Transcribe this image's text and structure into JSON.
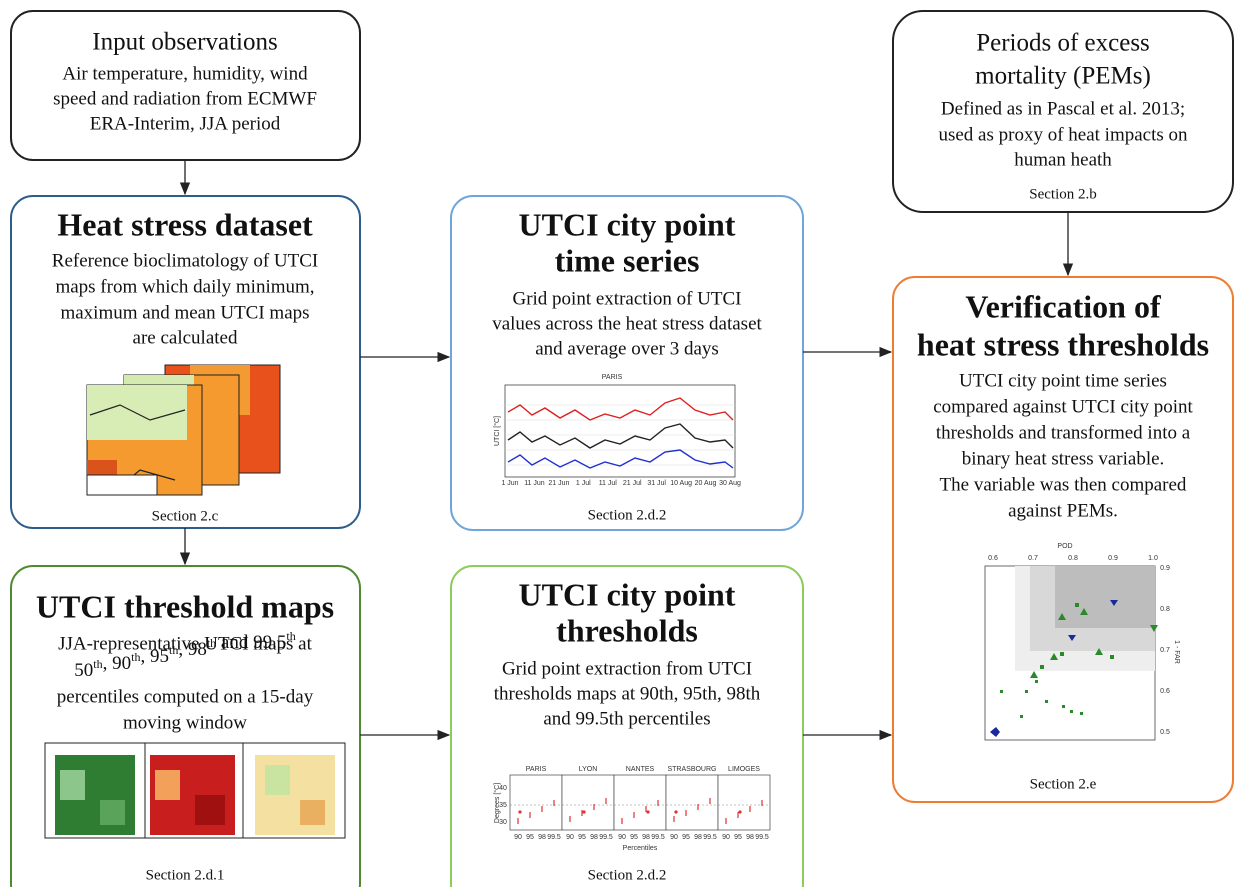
{
  "nodes": [
    {
      "title": [
        "Input observations"
      ],
      "body": [
        "Air temperature, humidity, wind",
        "speed and radiation from ECMWF",
        "ERA-Interim, JJA period"
      ]
    },
    {
      "title": [
        "Heat stress dataset"
      ],
      "body": [
        "Reference bioclimatology of UTCI",
        "maps from which daily minimum,",
        "maximum and mean UTCI maps",
        "are calculated"
      ],
      "section": "Section 2.c"
    },
    {
      "title": [
        "UTCI threshold maps"
      ],
      "body": [
        "JJA-representative UTCI maps at",
        "percentiles computed on a 15-day",
        "moving window"
      ],
      "percentile_line": [
        {
          "text": "50",
          "sup": "th"
        },
        {
          "text": ", 90",
          "sup": "th"
        },
        {
          "text": ", 95",
          "sup": "th"
        },
        {
          "text": ", 98",
          "sup": "th"
        },
        {
          "text": " and 99.5",
          "sup": "th"
        }
      ],
      "section": "Section 2.d.1"
    },
    {
      "title": [
        "UTCI city point",
        "time series"
      ],
      "body": [
        "Grid point extraction of UTCI",
        "values across the heat stress dataset",
        "and average over 3 days"
      ],
      "section": "Section 2.d.2",
      "figure": {
        "title": "PARIS",
        "ylabel": "UTCI [°C]",
        "xticks": [
          "1 Jun",
          "11 Jun",
          "21 Jun",
          "1 Jul",
          "11 Jul",
          "21 Jul",
          "31 Jul",
          "10 Aug",
          "20 Aug",
          "30 Aug"
        ]
      }
    },
    {
      "title": [
        "UTCI city point",
        "thresholds"
      ],
      "body": [
        "Grid point extraction from UTCI",
        "thresholds maps at 90th, 95th, 98th",
        "and 99.5th percentiles"
      ],
      "section": "Section 2.d.2",
      "figure": {
        "panels": [
          "PARIS",
          "LYON",
          "NANTES",
          "STRASBOURG",
          "LIMOGES"
        ],
        "ylabel": "Degrees [°C]",
        "yticks": [
          "40",
          "35",
          "30"
        ],
        "xticks": [
          "90",
          "95",
          "98",
          "99.5"
        ],
        "xlabel": "Percentiles"
      }
    },
    {
      "title": [
        "Periods of excess",
        "mortality (PEMs)"
      ],
      "body": [
        "Defined as in Pascal et al. 2013;",
        "used as proxy of heat impacts on",
        "human heath"
      ],
      "section": "Section 2.b"
    },
    {
      "title": [
        "Verification of",
        "heat stress thresholds"
      ],
      "body": [
        "UTCI city point time series",
        "compared against UTCI city point",
        "thresholds and transformed into a",
        "binary heat stress variable.",
        "The variable was then compared",
        "against PEMs."
      ],
      "section": "Section 2.e",
      "figure": {
        "xlabel": "POD",
        "xticks": [
          "0.6",
          "0.7",
          "0.8",
          "0.9",
          "1.0"
        ],
        "ylabel": "1 - FAR",
        "yticks": [
          "0.9",
          "0.8",
          "0.7",
          "0.6",
          "0.5"
        ]
      }
    }
  ]
}
